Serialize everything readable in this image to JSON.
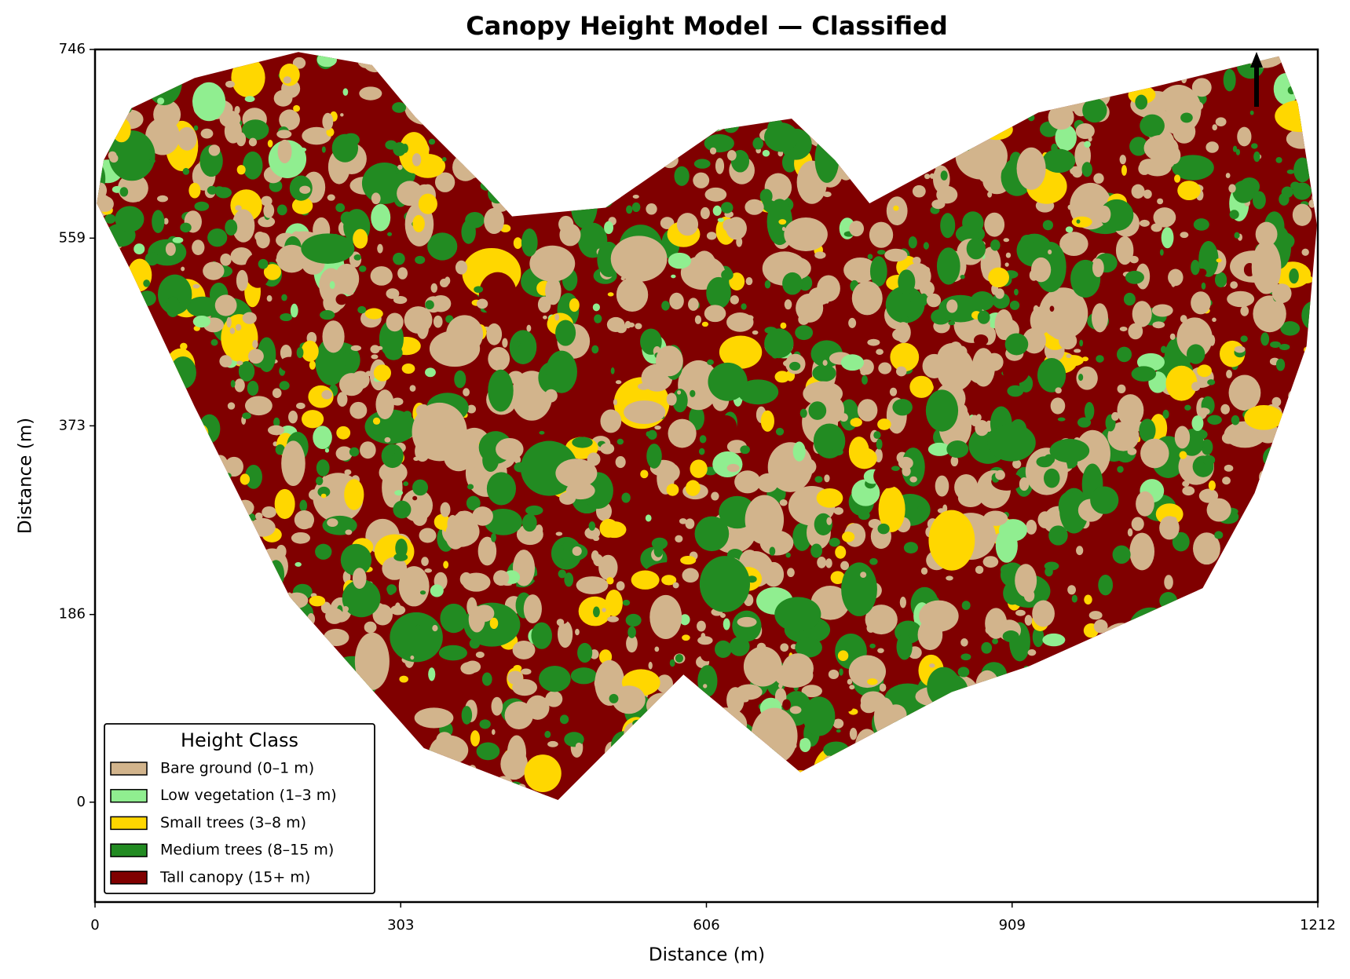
{
  "chart_data": {
    "type": "raster",
    "title": "Canopy Height Model — Classified",
    "xlabel": "Distance (m)",
    "ylabel": "Distance (m)",
    "xlim": [
      0,
      1212
    ],
    "ylim": [
      -99,
      746
    ],
    "xticks": [
      0,
      303,
      606,
      909,
      1212
    ],
    "yticks": [
      0,
      186,
      373,
      559,
      746
    ],
    "legend": {
      "title": "Height Class",
      "loc": "lower left"
    },
    "series": [
      {
        "name": "Bare ground (0–1 m)",
        "color": "#d2b48c"
      },
      {
        "name": "Low vegetation (1–3 m)",
        "color": "#90ee90"
      },
      {
        "name": "Small trees (3–8 m)",
        "color": "#ffd700"
      },
      {
        "name": "Medium trees (8–15 m)",
        "color": "#228b22"
      },
      {
        "name": "Tall canopy (15+ m)",
        "color": "#800000"
      }
    ]
  }
}
